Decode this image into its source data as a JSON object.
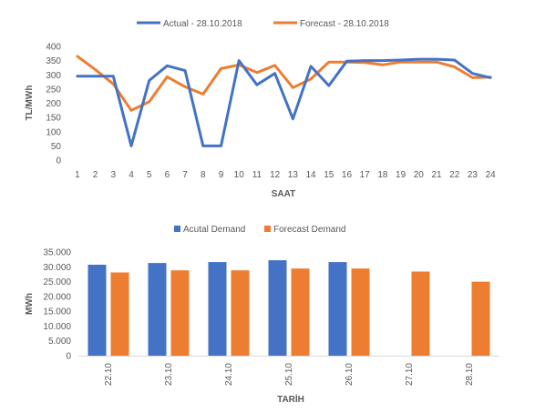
{
  "chart_data": [
    {
      "type": "line",
      "x": [
        1,
        2,
        3,
        4,
        5,
        6,
        7,
        8,
        9,
        10,
        11,
        12,
        13,
        14,
        15,
        16,
        17,
        18,
        19,
        20,
        21,
        22,
        23,
        24
      ],
      "series": [
        {
          "name": "Actual - 28.10.2018",
          "color": "#4472C4",
          "values": [
            295,
            295,
            295,
            50,
            280,
            332,
            315,
            50,
            50,
            350,
            265,
            305,
            145,
            330,
            262,
            348,
            350,
            350,
            352,
            355,
            355,
            352,
            305,
            290
          ]
        },
        {
          "name": "Forecast - 28.10.2018",
          "color": "#ED7D31",
          "values": [
            365,
            318,
            268,
            175,
            205,
            293,
            258,
            232,
            322,
            335,
            308,
            333,
            255,
            285,
            345,
            345,
            343,
            335,
            345,
            345,
            345,
            328,
            290,
            292
          ]
        }
      ],
      "xlabel": "SAAT",
      "ylabel": "TL/MWh",
      "ylim": [
        0,
        400
      ],
      "yticks": [
        "0",
        "50",
        "100",
        "150",
        "200",
        "250",
        "300",
        "350",
        "400"
      ],
      "xticks": [
        "1",
        "2",
        "3",
        "4",
        "5",
        "6",
        "7",
        "8",
        "9",
        "10",
        "11",
        "12",
        "13",
        "14",
        "15",
        "16",
        "17",
        "18",
        "19",
        "20",
        "21",
        "22",
        "23",
        "24"
      ],
      "legend": "top",
      "grid": false
    },
    {
      "type": "bar",
      "categories": [
        "22.10",
        "23.10",
        "24.10",
        "25.10",
        "26.10",
        "27.10",
        "28.10"
      ],
      "series": [
        {
          "name": "Acutal Demand",
          "color": "#4472C4",
          "values": [
            30700,
            31300,
            31600,
            32200,
            31600,
            null,
            null
          ]
        },
        {
          "name": "Forecast Demand",
          "color": "#ED7D31",
          "values": [
            28100,
            28800,
            28800,
            29400,
            29400,
            28400,
            25000
          ]
        }
      ],
      "xlabel": "TARİH",
      "ylabel": "MWh",
      "ylim": [
        0,
        35000
      ],
      "yticks": [
        "0",
        "5.000",
        "10.000",
        "15.000",
        "20.000",
        "25.000",
        "30.000",
        "35.000"
      ],
      "legend": "top",
      "grid": false
    }
  ]
}
